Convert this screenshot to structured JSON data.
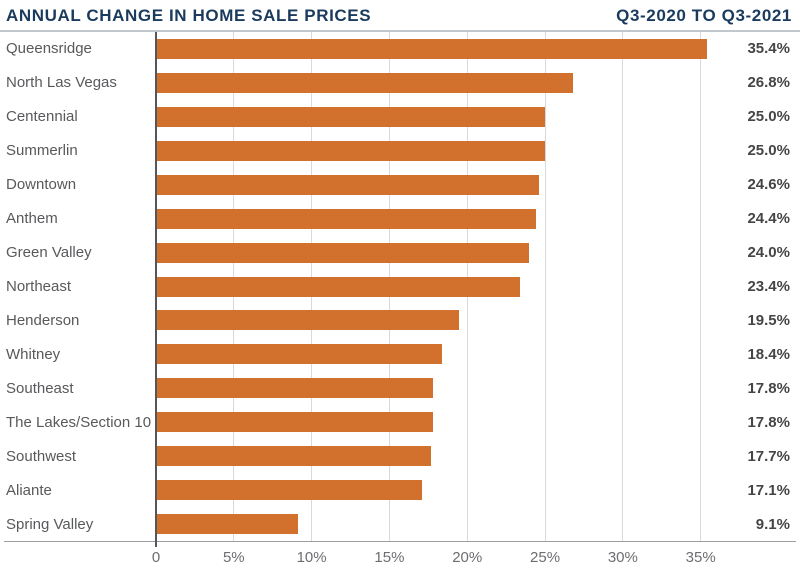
{
  "header": {
    "title": "ANNUAL CHANGE IN HOME SALE PRICES",
    "period": "Q3-2020 TO Q3-2021"
  },
  "chart_data": {
    "type": "bar",
    "orientation": "horizontal",
    "title": "ANNUAL CHANGE IN HOME SALE PRICES",
    "subtitle": "Q3-2020 TO Q3-2021",
    "categories": [
      "Queensridge",
      "North Las Vegas",
      "Centennial",
      "Summerlin",
      "Downtown",
      "Anthem",
      "Green Valley",
      "Northeast",
      "Henderson",
      "Whitney",
      "Southeast",
      "The Lakes/Section 10",
      "Southwest",
      "Aliante",
      "Spring Valley"
    ],
    "values": [
      35.4,
      26.8,
      25.0,
      25.0,
      24.6,
      24.4,
      24.0,
      23.4,
      19.5,
      18.4,
      17.8,
      17.8,
      17.7,
      17.1,
      9.1
    ],
    "value_labels": [
      "35.4%",
      "26.8%",
      "25.0%",
      "25.0%",
      "24.6%",
      "24.4%",
      "24.0%",
      "23.4%",
      "19.5%",
      "18.4%",
      "17.8%",
      "17.8%",
      "17.7%",
      "17.1%",
      "9.1%"
    ],
    "xlabel": "",
    "ylabel": "",
    "x_axis": {
      "tick_labels": [
        "0",
        "5%",
        "10%",
        "15%",
        "20%",
        "25%",
        "30%",
        "35%"
      ],
      "tick_values": [
        0,
        5,
        10,
        15,
        20,
        25,
        30,
        35
      ],
      "max": 36.5
    },
    "grid": "vertical-gridlines-on",
    "legend": "none",
    "colors": {
      "bar": "#D2712D",
      "title": "#1A3B5D",
      "category_label": "#58595B",
      "value_label": "#454547",
      "tick_label": "#6D6E71",
      "gridline": "#D8D9DB",
      "axis_line": "#9C9EA1",
      "zero_axis": "#54565A",
      "divider": "#C2C7CB",
      "background": "#FFFFFF"
    }
  }
}
